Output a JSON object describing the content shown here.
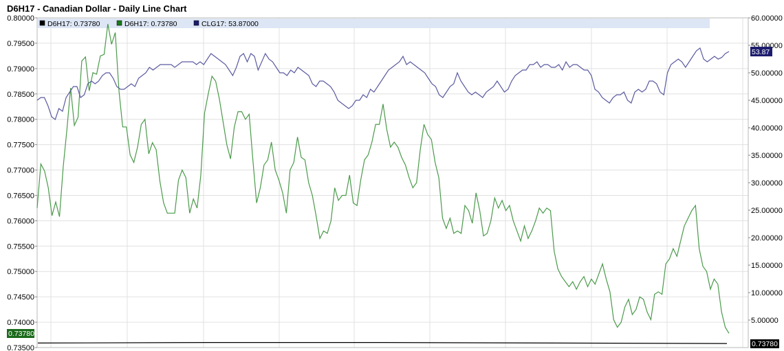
{
  "title": "D6H17 - Canadian Dollar - Daily Line Chart",
  "legend": [
    {
      "label": "D6H17: 0.73780",
      "color": "#000000"
    },
    {
      "label": "D6H17: 0.73780",
      "color": "#1a7a1a"
    },
    {
      "label": "CLG17: 53.87000",
      "color": "#1c1c6e"
    }
  ],
  "badges": {
    "left_last": "0.73780",
    "right_last_price": "0.73780",
    "right_last_crude": "53.87"
  },
  "colors": {
    "cad_line": "#4a9a4a",
    "crude_line": "#5a5aa0",
    "grid": "#e0e0e0",
    "legend_bg": "#dde6f5",
    "left_badge_bg": "#1a6a1a",
    "crude_badge_bg": "#1c1c6e",
    "price_badge_bg": "#000000"
  },
  "chart_data": {
    "type": "line",
    "title": "D6H17 - Canadian Dollar - Daily Line Chart",
    "left_axis": {
      "ylim": [
        0.735,
        0.8
      ],
      "ticks": [
        "0.73500",
        "0.74000",
        "0.74500",
        "0.75000",
        "0.75500",
        "0.76000",
        "0.76500",
        "0.77000",
        "0.77500",
        "0.78000",
        "0.78500",
        "0.79000",
        "0.79500",
        "0.80000"
      ]
    },
    "right_axis": {
      "ylim": [
        0,
        60
      ],
      "ticks": [
        "5.00000",
        "10.00000",
        "15.00000",
        "20.00000",
        "25.00000",
        "30.00000",
        "35.00000",
        "40.00000",
        "45.00000",
        "50.00000",
        "55.00000",
        "60.00000"
      ]
    },
    "grid": true,
    "series": [
      {
        "name": "D6H17",
        "axis": "left",
        "values": [
          0.7625,
          0.7712,
          0.7698,
          0.7665,
          0.761,
          0.7637,
          0.7608,
          0.7706,
          0.778,
          0.7862,
          0.7788,
          0.7804,
          0.7915,
          0.7923,
          0.7856,
          0.7892,
          0.7889,
          0.7925,
          0.7928,
          0.7988,
          0.7948,
          0.7971,
          0.7856,
          0.7785,
          0.7785,
          0.773,
          0.7715,
          0.7745,
          0.779,
          0.78,
          0.7732,
          0.7754,
          0.774,
          0.7678,
          0.7635,
          0.7615,
          0.7615,
          0.7615,
          0.768,
          0.77,
          0.7685,
          0.7615,
          0.7643,
          0.7625,
          0.769,
          0.7812,
          0.785,
          0.7885,
          0.7875,
          0.784,
          0.7795,
          0.775,
          0.7722,
          0.7785,
          0.7815,
          0.7815,
          0.78,
          0.781,
          0.772,
          0.7635,
          0.7665,
          0.771,
          0.772,
          0.7755,
          0.77,
          0.768,
          0.7655,
          0.7615,
          0.77,
          0.7715,
          0.7765,
          0.7725,
          0.772,
          0.7675,
          0.765,
          0.761,
          0.7565,
          0.758,
          0.7575,
          0.76,
          0.7665,
          0.764,
          0.765,
          0.765,
          0.769,
          0.7635,
          0.763,
          0.768,
          0.772,
          0.773,
          0.7755,
          0.779,
          0.779,
          0.783,
          0.778,
          0.7745,
          0.7755,
          0.7745,
          0.7725,
          0.771,
          0.7685,
          0.7665,
          0.7675,
          0.774,
          0.779,
          0.777,
          0.776,
          0.7715,
          0.7685,
          0.7605,
          0.7585,
          0.7605,
          0.7575,
          0.758,
          0.7575,
          0.763,
          0.762,
          0.7595,
          0.7655,
          0.762,
          0.757,
          0.7575,
          0.76,
          0.7645,
          0.7625,
          0.764,
          0.762,
          0.763,
          0.76,
          0.758,
          0.756,
          0.759,
          0.7565,
          0.758,
          0.76,
          0.7625,
          0.7615,
          0.7625,
          0.762,
          0.754,
          0.7505,
          0.749,
          0.748,
          0.747,
          0.748,
          0.7465,
          0.748,
          0.749,
          0.747,
          0.7485,
          0.7475,
          0.7495,
          0.7515,
          0.7485,
          0.746,
          0.7405,
          0.739,
          0.74,
          0.743,
          0.7445,
          0.7415,
          0.7425,
          0.745,
          0.7445,
          0.742,
          0.7405,
          0.7455,
          0.746,
          0.7455,
          0.7515,
          0.7525,
          0.7545,
          0.753,
          0.756,
          0.759,
          0.7605,
          0.762,
          0.763,
          0.7545,
          0.751,
          0.75,
          0.7465,
          0.7485,
          0.7475,
          0.742,
          0.739,
          0.7378
        ]
      },
      {
        "name": "CLG17",
        "axis": "right",
        "values": [
          45.0,
          45.5,
          45.5,
          44.0,
          42.0,
          41.5,
          43.5,
          43.0,
          45.5,
          46.5,
          47.5,
          47.5,
          45.5,
          46.0,
          48.0,
          48.5,
          48.0,
          48.5,
          49.5,
          50.0,
          50.0,
          49.0,
          47.5,
          47.0,
          47.0,
          47.5,
          48.0,
          47.5,
          49.0,
          49.5,
          50.0,
          51.0,
          50.5,
          51.0,
          51.5,
          51.5,
          51.5,
          51.5,
          51.0,
          51.5,
          52.0,
          52.0,
          52.0,
          52.0,
          51.5,
          52.0,
          51.5,
          52.5,
          53.5,
          53.0,
          52.5,
          52.0,
          51.5,
          50.5,
          49.5,
          51.0,
          53.0,
          53.5,
          52.0,
          53.5,
          53.0,
          50.5,
          52.0,
          53.5,
          52.5,
          52.0,
          51.0,
          50.0,
          50.0,
          49.5,
          50.5,
          50.0,
          51.0,
          50.5,
          50.0,
          49.5,
          48.0,
          47.5,
          48.5,
          48.5,
          48.0,
          47.5,
          46.5,
          45.0,
          44.5,
          44.0,
          43.5,
          44.0,
          45.0,
          45.0,
          46.0,
          45.5,
          47.0,
          46.5,
          47.5,
          48.5,
          49.5,
          50.5,
          51.0,
          51.5,
          52.0,
          53.0,
          51.5,
          52.0,
          51.5,
          51.0,
          50.5,
          50.0,
          49.0,
          48.0,
          47.5,
          46.0,
          45.5,
          46.5,
          47.5,
          48.0,
          50.0,
          48.5,
          47.5,
          46.5,
          46.0,
          46.5,
          46.0,
          45.5,
          46.5,
          47.0,
          47.5,
          48.5,
          47.5,
          46.5,
          47.0,
          48.5,
          49.5,
          50.0,
          50.5,
          50.5,
          51.5,
          51.5,
          52.0,
          51.0,
          51.5,
          51.5,
          51.0,
          51.0,
          51.5,
          50.5,
          52.0,
          51.0,
          51.5,
          51.5,
          51.0,
          50.5,
          50.5,
          49.5,
          47.0,
          46.5,
          45.5,
          45.0,
          44.5,
          45.5,
          46.0,
          46.0,
          46.5,
          45.0,
          44.5,
          46.5,
          47.0,
          46.5,
          47.0,
          48.5,
          48.5,
          48.0,
          46.5,
          46.0,
          50.0,
          51.5,
          52.0,
          52.5,
          52.0,
          51.0,
          52.0,
          53.0,
          54.0,
          54.5,
          52.5,
          52.0,
          52.5,
          53.0,
          52.5,
          52.8,
          53.5,
          53.87
        ]
      },
      {
        "name": "D6H17",
        "axis": "left",
        "flat": true,
        "values": [
          0.7359,
          0.736,
          0.736,
          0.7359,
          0.7358
        ]
      }
    ]
  }
}
